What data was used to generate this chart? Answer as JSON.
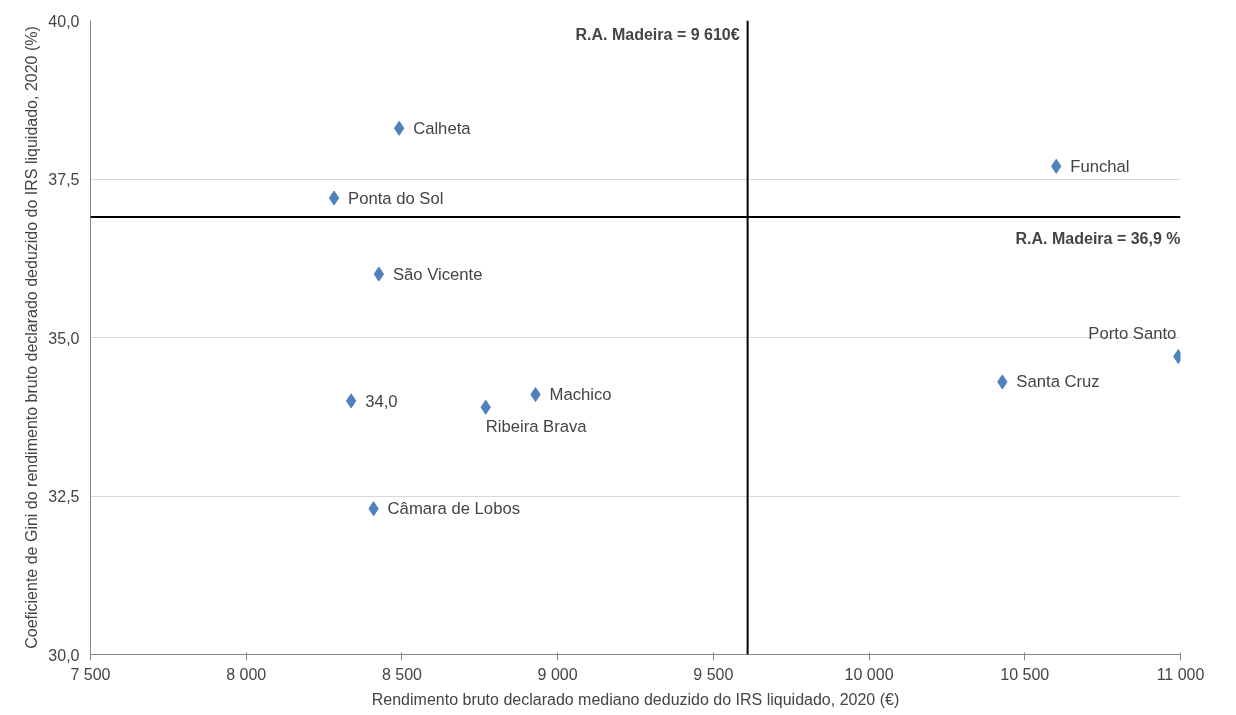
{
  "chart_data": {
    "type": "scatter",
    "xlabel": "Rendimento bruto declarado mediano deduzido do IRS liquidado, 2020 (€)",
    "ylabel": "Coeficiente de Gini do rendimento bruto declarado deduzido do IRS liquidado, 2020 (%)",
    "x": [
      8491,
      8282,
      8426,
      8337,
      8769,
      8929,
      8409,
      10601,
      10428,
      10993
    ],
    "series": [
      {
        "color": "#4f81bd",
        "values": [
          38.3,
          37.2,
          36.0,
          34.0,
          33.9,
          34.1,
          32.3,
          37.7,
          34.3,
          34.7
        ]
      }
    ],
    "annotations": [
      {
        "text": "Calheta",
        "x": 8491,
        "y": 38.3
      },
      {
        "text": "Ponta do Sol",
        "x": 8282,
        "y": 37.2
      },
      {
        "text": "São Vicente",
        "x": 8426,
        "y": 36.0
      },
      {
        "text": "34,0",
        "x": 8337,
        "y": 34.0
      },
      {
        "text": "Ribeira Brava",
        "x": 8769,
        "y": 33.9
      },
      {
        "text": "Machico",
        "x": 8929,
        "y": 34.1
      },
      {
        "text": "Câmara de Lobos",
        "x": 8409,
        "y": 32.3
      },
      {
        "text": "Funchal",
        "x": 10601,
        "y": 37.7
      },
      {
        "text": "Santa Cruz",
        "x": 10428,
        "y": 34.3
      },
      {
        "text": "Porto Santo",
        "x": 10993,
        "y": 34.7
      }
    ],
    "ref_lines": [
      {
        "axis": "x",
        "value": 9610,
        "label": "R.A. Madeira = 9 610€",
        "color": "#000000"
      },
      {
        "axis": "y",
        "value": 36.9,
        "label": "R.A. Madeira = 36,9 %",
        "color": "#000000"
      }
    ],
    "xlim": [
      7500,
      11000
    ],
    "xticks": [
      {
        "value": 7500,
        "label": "7 500"
      },
      {
        "value": 8000,
        "label": "8 000"
      },
      {
        "value": 8500,
        "label": "8 500"
      },
      {
        "value": 9000,
        "label": "9 000"
      },
      {
        "value": 9500,
        "label": "9 500"
      },
      {
        "value": 10000,
        "label": "10 000"
      },
      {
        "value": 10500,
        "label": "10 500"
      },
      {
        "value": 11000,
        "label": "11 000"
      }
    ],
    "ylim": [
      30,
      40
    ],
    "yticks": [
      {
        "value": 30,
        "label": "30,0"
      },
      {
        "value": 32.5,
        "label": "32,5"
      },
      {
        "value": 35,
        "label": "35,0"
      },
      {
        "value": 37.5,
        "label": "37,5"
      },
      {
        "value": 40,
        "label": "40,0"
      }
    ],
    "grid": "y",
    "marker": "diamond"
  }
}
